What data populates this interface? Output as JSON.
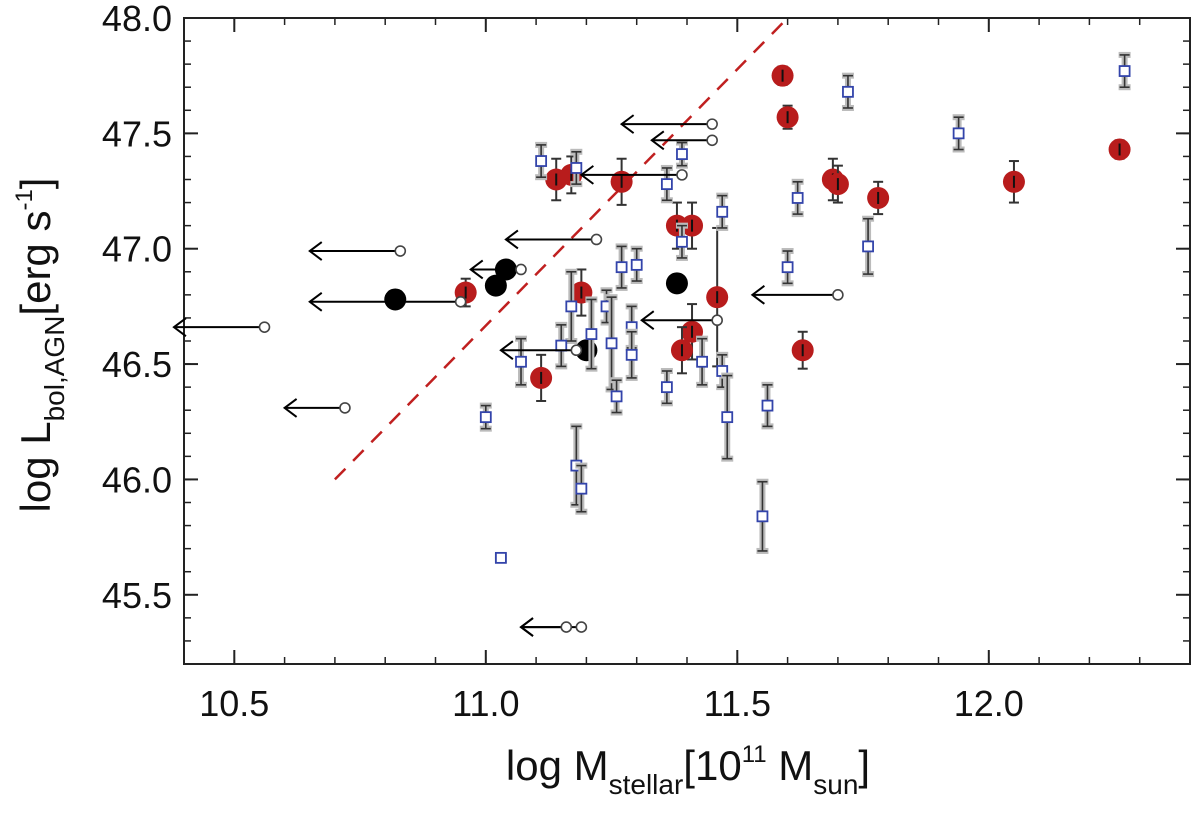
{
  "chart_data": {
    "type": "scatter",
    "title": "",
    "xlabel": {
      "main": "log M",
      "sub": "stellar",
      "bracket_open": "[10",
      "exp": "11",
      "unit": " M",
      "unit_sub": "sun",
      "bracket_close": "]"
    },
    "ylabel": {
      "main": "log L",
      "sub": "bol,AGN",
      "bracket_open": "[erg s",
      "exp": "-1",
      "bracket_close": "]"
    },
    "xlim": [
      10.4,
      12.4
    ],
    "ylim": [
      45.2,
      48.0
    ],
    "xticks": [
      {
        "value": 10.5,
        "label": "10.5"
      },
      {
        "value": 11.0,
        "label": "11.0"
      },
      {
        "value": 11.5,
        "label": "11.5"
      },
      {
        "value": 12.0,
        "label": "12.0"
      }
    ],
    "yticks": [
      {
        "value": 45.5,
        "label": "45.5"
      },
      {
        "value": 46.0,
        "label": "46.0"
      },
      {
        "value": 46.5,
        "label": "46.5"
      },
      {
        "value": 47.0,
        "label": "47.0"
      },
      {
        "value": 47.5,
        "label": "47.5"
      },
      {
        "value": 48.0,
        "label": "48.0"
      }
    ],
    "colors": {
      "red": "#b81c1c",
      "black": "#000000",
      "square": "#3344aa",
      "err_black": "#333333",
      "err_grey": "#bbbbbb",
      "reference_line": "#c02020"
    },
    "reference_line": {
      "x": [
        10.7,
        11.6
      ],
      "y": [
        46.0,
        48.0
      ],
      "style": "dashed"
    },
    "series": [
      {
        "name": "red filled circles",
        "marker": "circle-filled",
        "color": "#b81c1c",
        "points": [
          {
            "x": 11.59,
            "y": 47.75,
            "err": 0.04
          },
          {
            "x": 11.6,
            "y": 47.57,
            "err": 0.05
          },
          {
            "x": 11.14,
            "y": 47.3,
            "err": 0.09
          },
          {
            "x": 11.17,
            "y": 47.32,
            "err": 0.08
          },
          {
            "x": 11.27,
            "y": 47.29,
            "err": 0.1
          },
          {
            "x": 11.38,
            "y": 47.1,
            "err": 0.1
          },
          {
            "x": 11.41,
            "y": 47.1,
            "err": 0.1
          },
          {
            "x": 11.69,
            "y": 47.3,
            "err": 0.09
          },
          {
            "x": 11.7,
            "y": 47.28,
            "err": 0.08
          },
          {
            "x": 11.78,
            "y": 47.22,
            "err": 0.07
          },
          {
            "x": 12.05,
            "y": 47.29,
            "err": 0.09
          },
          {
            "x": 12.26,
            "y": 47.43,
            "err": 0.04
          },
          {
            "x": 10.96,
            "y": 46.81,
            "err": 0.06
          },
          {
            "x": 11.19,
            "y": 46.81,
            "err": 0.1
          },
          {
            "x": 11.46,
            "y": 46.79,
            "err": 0.3
          },
          {
            "x": 11.41,
            "y": 46.64,
            "err": 0.12
          },
          {
            "x": 11.39,
            "y": 46.56,
            "err": 0.1
          },
          {
            "x": 11.63,
            "y": 46.56,
            "err": 0.08
          },
          {
            "x": 11.11,
            "y": 46.44,
            "err": 0.1
          }
        ]
      },
      {
        "name": "black filled circles",
        "marker": "circle-filled",
        "color": "#000000",
        "points": [
          {
            "x": 10.82,
            "y": 46.78
          },
          {
            "x": 11.02,
            "y": 46.84
          },
          {
            "x": 11.04,
            "y": 46.91
          },
          {
            "x": 11.2,
            "y": 46.56
          },
          {
            "x": 11.38,
            "y": 46.85
          }
        ]
      },
      {
        "name": "open squares",
        "marker": "square-open",
        "color": "#3344aa",
        "points": [
          {
            "x": 12.27,
            "y": 47.77,
            "err": 0.07
          },
          {
            "x": 11.72,
            "y": 47.68,
            "err": 0.07
          },
          {
            "x": 11.94,
            "y": 47.5,
            "err": 0.07
          },
          {
            "x": 11.11,
            "y": 47.38,
            "err": 0.07
          },
          {
            "x": 11.18,
            "y": 47.35,
            "err": 0.07
          },
          {
            "x": 11.39,
            "y": 47.41,
            "err": 0.05
          },
          {
            "x": 11.36,
            "y": 47.28,
            "err": 0.07
          },
          {
            "x": 11.62,
            "y": 47.22,
            "err": 0.07
          },
          {
            "x": 11.47,
            "y": 47.16,
            "err": 0.07
          },
          {
            "x": 11.39,
            "y": 47.03,
            "err": 0.07
          },
          {
            "x": 11.76,
            "y": 47.01,
            "err": 0.12
          },
          {
            "x": 11.6,
            "y": 46.92,
            "err": 0.07
          },
          {
            "x": 11.27,
            "y": 46.92,
            "err": 0.09
          },
          {
            "x": 11.3,
            "y": 46.93,
            "err": 0.07
          },
          {
            "x": 11.17,
            "y": 46.75,
            "err": 0.15
          },
          {
            "x": 11.24,
            "y": 46.75,
            "err": 0.07
          },
          {
            "x": 11.29,
            "y": 46.66,
            "err": 0.09
          },
          {
            "x": 11.21,
            "y": 46.63,
            "err": 0.15
          },
          {
            "x": 11.25,
            "y": 46.59,
            "err": 0.2
          },
          {
            "x": 11.15,
            "y": 46.58,
            "err": 0.09
          },
          {
            "x": 11.29,
            "y": 46.54,
            "err": 0.1
          },
          {
            "x": 11.43,
            "y": 46.51,
            "err": 0.1
          },
          {
            "x": 11.07,
            "y": 46.51,
            "err": 0.1
          },
          {
            "x": 11.47,
            "y": 46.47,
            "err": 0.07
          },
          {
            "x": 11.36,
            "y": 46.4,
            "err": 0.07
          },
          {
            "x": 11.26,
            "y": 46.36,
            "err": 0.07
          },
          {
            "x": 11.56,
            "y": 46.32,
            "err": 0.09
          },
          {
            "x": 11.0,
            "y": 46.27,
            "err": 0.05
          },
          {
            "x": 11.48,
            "y": 46.27,
            "err": 0.18
          },
          {
            "x": 11.18,
            "y": 46.06,
            "err": 0.17
          },
          {
            "x": 11.19,
            "y": 45.96,
            "err": 0.1
          },
          {
            "x": 11.55,
            "y": 45.84,
            "err": 0.15
          },
          {
            "x": 11.03,
            "y": 45.66,
            "err": 0.01
          }
        ]
      },
      {
        "name": "upper limits (open circles with leftward arrows)",
        "marker": "circle-open-arrow-left",
        "color": "#000000",
        "points": [
          {
            "x": 11.45,
            "y": 47.54,
            "dx": 0.18
          },
          {
            "x": 11.45,
            "y": 47.47,
            "dx": 0.12
          },
          {
            "x": 11.39,
            "y": 47.32,
            "dx": 0.2
          },
          {
            "x": 10.83,
            "y": 46.99,
            "dx": 0.18
          },
          {
            "x": 11.22,
            "y": 47.04,
            "dx": 0.18
          },
          {
            "x": 11.07,
            "y": 46.91,
            "dx": 0.1
          },
          {
            "x": 10.95,
            "y": 46.77,
            "dx": 0.3
          },
          {
            "x": 11.7,
            "y": 46.8,
            "dx": 0.17
          },
          {
            "x": 11.46,
            "y": 46.69,
            "dx": 0.15
          },
          {
            "x": 10.56,
            "y": 46.66,
            "dx": 0.18
          },
          {
            "x": 11.18,
            "y": 46.56,
            "dx": 0.15
          },
          {
            "x": 10.72,
            "y": 46.31,
            "dx": 0.12
          },
          {
            "x": 11.19,
            "y": 45.36,
            "dx": 0.12
          },
          {
            "x": 11.16,
            "y": 45.36,
            "dx": 0.09
          }
        ]
      }
    ]
  }
}
